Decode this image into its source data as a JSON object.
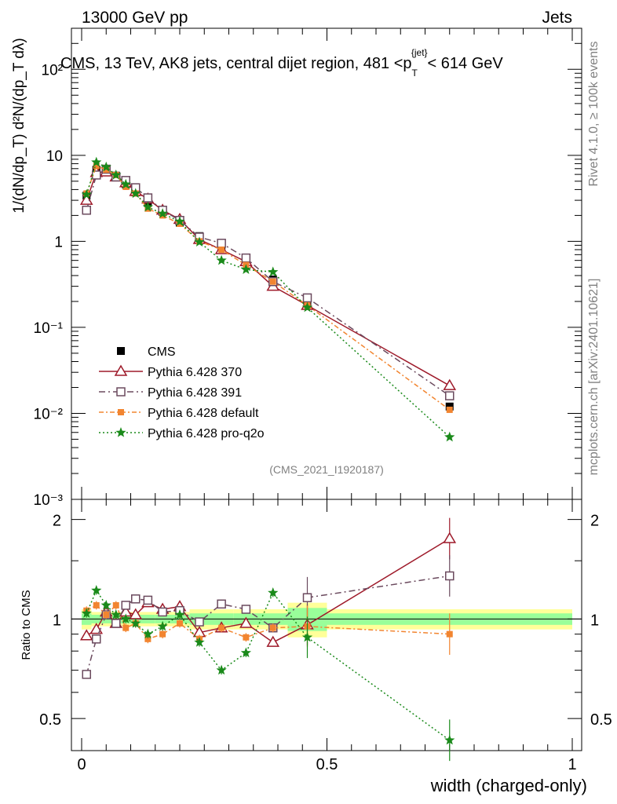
{
  "header": {
    "energy_label": "13000 GeV pp",
    "process_label": "Jets"
  },
  "side_labels": {
    "rivet": "Rivet 4.1.0, ≥ 100k events",
    "mcplots": "mcplots.cern.ch [arXiv:2401.10621]"
  },
  "analysis_id": "(CMS_2021_I1920187)",
  "main_axis": {
    "y_title": "1/(dN/dp_T) d²N/(dp_T dλ)",
    "ytick_labels": [
      "10⁻³",
      "10⁻²",
      "10⁻¹",
      "1",
      "10",
      "10²"
    ]
  },
  "ratio_axis": {
    "y_title": "Ratio to CMS",
    "ytick_labels": [
      "0.5",
      "1",
      "2"
    ]
  },
  "x_axis": {
    "title": "width (charged-only)",
    "tick_labels": [
      "0",
      "0.5",
      "1"
    ]
  },
  "colors": {
    "cms": "#000000",
    "p370": "#9e1a2a",
    "p391": "#6b4a5e",
    "default": "#f28530",
    "proq2o": "#1a8a1a",
    "band_outer": "#ffff99",
    "band_inner": "#99ff99"
  },
  "chart_data": {
    "type": "scatter",
    "title": "CMS, 13 TeV, AK8 jets, central dijet region, 481 < p_T^{jet} < 614 GeV",
    "title_parts": {
      "main": "CMS, 13 TeV, AK8 jets, central dijet region, 481 <p",
      "sub": "T",
      "sup": "{jet}",
      "end": "< 614 GeV"
    },
    "xlabel": "width (charged-only)",
    "ylabel": "1/(dN/dp_T) d²N/(dp_T dλ)",
    "xlim": [
      0,
      1
    ],
    "ylim": [
      0.001,
      300
    ],
    "yscale": "log",
    "ratio_ylim": [
      0.4,
      2.3
    ],
    "ratio_yscale": "log",
    "legend_position": "middle-left",
    "x": [
      0.01,
      0.03,
      0.05,
      0.07,
      0.09,
      0.11,
      0.135,
      0.165,
      0.2,
      0.24,
      0.285,
      0.335,
      0.39,
      0.46,
      0.75
    ],
    "series": [
      {
        "name": "CMS",
        "key": "cms",
        "marker": "square",
        "values": [
          3.4,
          6.8,
          6.6,
          5.8,
          4.6,
          3.7,
          2.8,
          2.2,
          1.65,
          1.15,
          0.85,
          0.6,
          0.36,
          0.19,
          0.012
        ],
        "ratio": [
          1,
          1,
          1,
          1,
          1,
          1,
          1,
          1,
          1,
          1,
          1,
          1,
          1,
          1,
          1
        ]
      },
      {
        "name": "Pythia 6.428 370",
        "key": "p370",
        "marker": "triangle",
        "values": [
          3.0,
          6.3,
          6.4,
          5.6,
          4.8,
          3.8,
          3.1,
          2.3,
          1.8,
          1.05,
          0.8,
          0.58,
          0.3,
          0.18,
          0.021
        ],
        "ratio": [
          0.89,
          0.93,
          1.05,
          0.97,
          1.05,
          1.03,
          1.12,
          1.07,
          1.09,
          0.91,
          0.94,
          0.97,
          0.85,
          0.96,
          1.75
        ]
      },
      {
        "name": "Pythia 6.428 391",
        "key": "p391",
        "marker": "open-square",
        "values": [
          2.3,
          5.9,
          6.9,
          5.6,
          5.1,
          4.2,
          3.2,
          2.3,
          1.75,
          1.12,
          0.95,
          0.64,
          0.34,
          0.22,
          0.016
        ],
        "ratio": [
          0.68,
          0.87,
          1.03,
          0.97,
          1.1,
          1.15,
          1.14,
          1.05,
          1.06,
          0.98,
          1.11,
          1.07,
          0.94,
          1.16,
          1.35
        ]
      },
      {
        "name": "Pythia 6.428 default",
        "key": "default",
        "marker": "filled-square-small",
        "values": [
          3.6,
          7.5,
          6.8,
          5.9,
          4.3,
          3.6,
          2.4,
          2.0,
          1.6,
          1.0,
          0.8,
          0.53,
          0.34,
          0.18,
          0.011
        ],
        "ratio": [
          1.06,
          1.1,
          1.03,
          1.1,
          0.94,
          0.97,
          0.87,
          0.9,
          0.97,
          0.87,
          0.94,
          0.88,
          0.94,
          0.95,
          0.9
        ]
      },
      {
        "name": "Pythia 6.428 pro-q2o",
        "key": "proq2o",
        "marker": "star",
        "values": [
          3.5,
          8.3,
          7.3,
          5.9,
          4.6,
          3.6,
          2.5,
          2.1,
          1.7,
          0.98,
          0.6,
          0.47,
          0.44,
          0.17,
          0.0053
        ],
        "ratio": [
          1.04,
          1.22,
          1.1,
          1.03,
          1.0,
          0.97,
          0.9,
          0.95,
          1.03,
          0.85,
          0.7,
          0.79,
          1.2,
          0.88,
          0.43
        ]
      }
    ],
    "reference_band": {
      "x_bins": [
        0,
        0.02,
        0.04,
        0.06,
        0.08,
        0.1,
        0.12,
        0.15,
        0.18,
        0.22,
        0.26,
        0.31,
        0.36,
        0.42,
        0.5,
        1.0
      ],
      "outer_half_width": [
        0.07,
        0.05,
        0.05,
        0.05,
        0.05,
        0.05,
        0.05,
        0.05,
        0.05,
        0.07,
        0.07,
        0.07,
        0.07,
        0.12,
        0.07
      ],
      "inner_half_width": [
        0.04,
        0.03,
        0.03,
        0.03,
        0.03,
        0.03,
        0.03,
        0.03,
        0.03,
        0.04,
        0.04,
        0.04,
        0.04,
        0.08,
        0.04
      ]
    }
  }
}
